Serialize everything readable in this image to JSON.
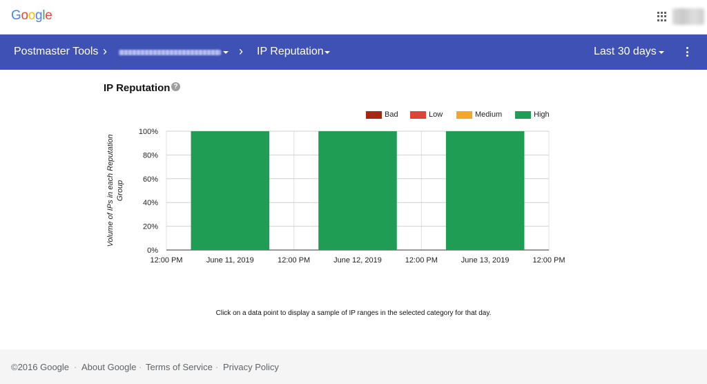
{
  "header": {
    "logo_letters": [
      {
        "ch": "G",
        "color": "#4285f4"
      },
      {
        "ch": "o",
        "color": "#ea4335"
      },
      {
        "ch": "o",
        "color": "#fbbc05"
      },
      {
        "ch": "g",
        "color": "#4285f4"
      },
      {
        "ch": "l",
        "color": "#34a853"
      },
      {
        "ch": "e",
        "color": "#ea4335"
      }
    ],
    "apps_icon": "apps-grid-icon"
  },
  "nav": {
    "title": "Postmaster Tools",
    "chevron": "›",
    "section": "IP Reputation",
    "date_range": "Last 30 days",
    "bg_color": "#3f51b5"
  },
  "main": {
    "title": "IP Reputation",
    "help_glyph": "?",
    "hint": "Click on a data point to display a sample of IP ranges in the selected category for that day."
  },
  "chart_data": {
    "type": "bar",
    "stacked": true,
    "ylabel": "Volume of IPs in each Reputation Group",
    "xlabel": "",
    "ylim": [
      0,
      100
    ],
    "yticks": [
      "0%",
      "20%",
      "40%",
      "60%",
      "80%",
      "100%"
    ],
    "x_tick_labels": [
      "12:00 PM",
      "June 11, 2019",
      "12:00 PM",
      "June 12, 2019",
      "12:00 PM",
      "June 13, 2019",
      "12:00 PM"
    ],
    "categories": [
      "June 11, 2019",
      "June 12, 2019",
      "June 13, 2019"
    ],
    "series": [
      {
        "name": "Bad",
        "color": "#a52714",
        "values": [
          0,
          0,
          0
        ]
      },
      {
        "name": "Low",
        "color": "#db4437",
        "values": [
          0,
          0,
          0
        ]
      },
      {
        "name": "Medium",
        "color": "#f4a62a",
        "values": [
          0,
          0,
          0
        ]
      },
      {
        "name": "High",
        "color": "#1f9d55",
        "values": [
          100,
          100,
          100
        ]
      }
    ],
    "grid": true,
    "legend": "top-right"
  },
  "footer": {
    "copyright": "©2016 Google",
    "links": [
      "About Google",
      "Terms of Service",
      "Privacy Policy"
    ],
    "separator": "·"
  }
}
